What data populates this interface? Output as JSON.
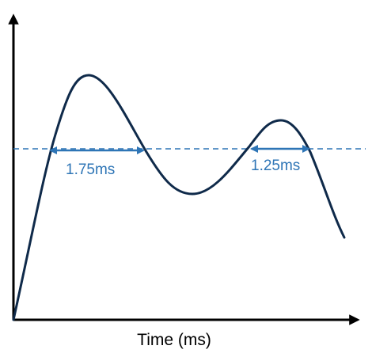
{
  "diagram": {
    "x_axis_label": "Time (ms)",
    "y_axis_label": "",
    "durations": [
      {
        "label": "1.75ms"
      },
      {
        "label": "1.25ms"
      }
    ],
    "colors": {
      "curve": "#0f2a4a",
      "threshold": "#2e75b6",
      "axes": "#000000"
    }
  }
}
